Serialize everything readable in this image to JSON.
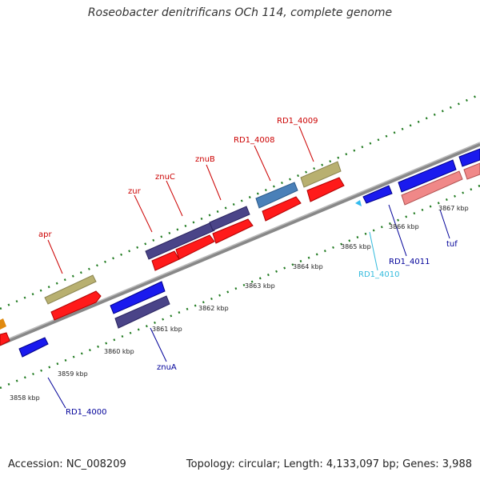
{
  "title": "Roseobacter denitrificans OCh 114, complete genome",
  "footer": {
    "accession": "Accession: NC_008209",
    "summary": "Topology: circular; Length: 4,133,097 bp; Genes: 3,988"
  },
  "ruler_labels": [
    "3858 kbp",
    "3859 kbp",
    "3860 kbp",
    "3861 kbp",
    "3862 kbp",
    "3863 kbp",
    "3864 kbp",
    "3865 kbp",
    "3866 kbp",
    "3867 kbp"
  ],
  "gene_labels": [
    {
      "text": "apr",
      "color": "#cc0000"
    },
    {
      "text": "zur",
      "color": "#cc0000"
    },
    {
      "text": "znuC",
      "color": "#cc0000"
    },
    {
      "text": "znuB",
      "color": "#cc0000"
    },
    {
      "text": "RD1_4008",
      "color": "#cc0000"
    },
    {
      "text": "RD1_4009",
      "color": "#cc0000"
    },
    {
      "text": "znuA",
      "color": "#000099"
    },
    {
      "text": "RD1_4000",
      "color": "#000099"
    },
    {
      "text": "RD1_4010",
      "color": "#33bbdd"
    },
    {
      "text": "RD1_4011",
      "color": "#000099"
    },
    {
      "text": "tuf",
      "color": "#000099"
    }
  ],
  "colors": {
    "backbone": "#8c8c8c",
    "tick": "#1f7a1f",
    "red_gene": "#ff1a1a",
    "blue_gene": "#1a1aee",
    "purple_gene": "#4a4488",
    "olive_gene": "#b8b070",
    "steel_gene": "#4a80b8",
    "pink_gene": "#f08888",
    "orange_gene": "#e08a10",
    "cyan_gene": "#33bbee"
  }
}
